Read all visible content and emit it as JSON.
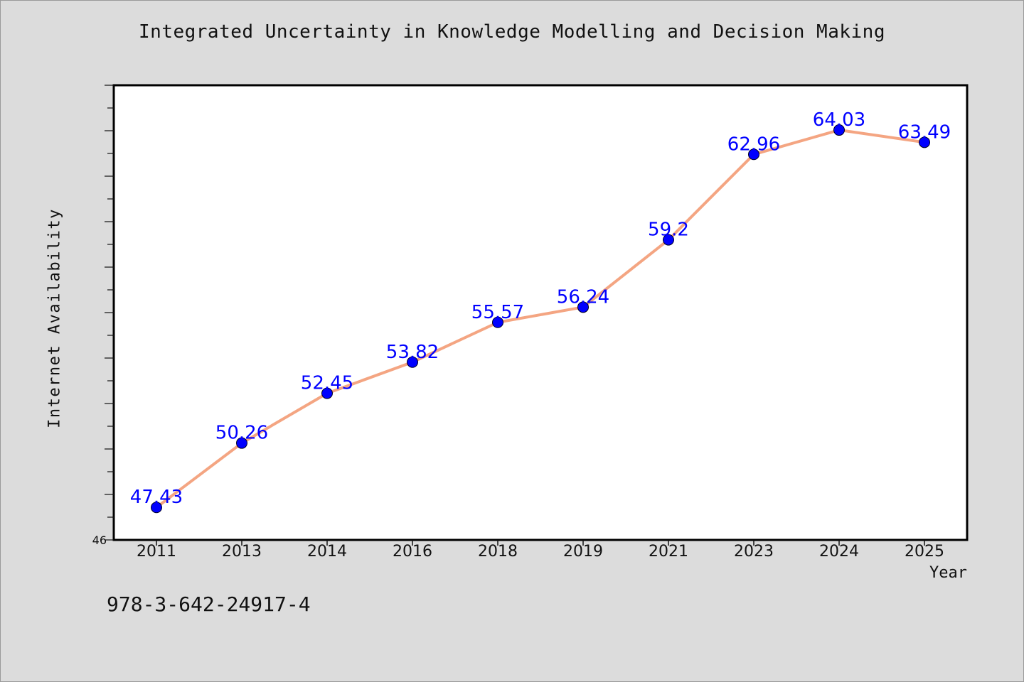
{
  "chart_data": {
    "type": "line",
    "title": "Integrated Uncertainty in Knowledge Modelling and Decision Making",
    "xlabel": "Year",
    "ylabel": "Internet Availability",
    "categories": [
      "2011",
      "2013",
      "2014",
      "2016",
      "2018",
      "2019",
      "2021",
      "2023",
      "2024",
      "2025"
    ],
    "series": [
      {
        "values": [
          47.43,
          50.26,
          52.45,
          53.82,
          55.57,
          56.24,
          59.2,
          62.96,
          64.03,
          63.49
        ],
        "labels": [
          "47.43",
          "50.26",
          "52.45",
          "53.82",
          "55.57",
          "56.24",
          "59.2",
          "62.96",
          "64.03",
          "63.49"
        ],
        "line_color": "#f4a582",
        "marker_color": "#0000ff"
      }
    ],
    "ylim": [
      46,
      66
    ],
    "y_tick_labels_shown": [
      "46"
    ],
    "grid": false,
    "legend": "none",
    "plot_background": "#ffffff",
    "figure_background": "#dcdcdc"
  },
  "footnote": "978-3-642-24917-4"
}
